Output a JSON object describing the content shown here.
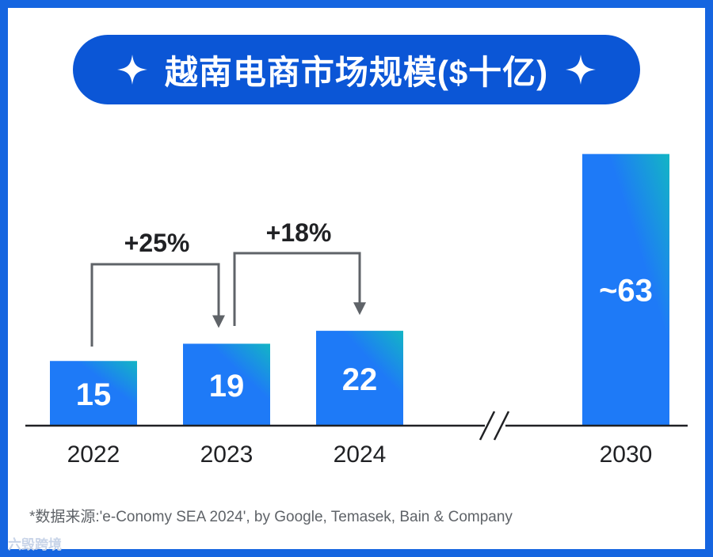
{
  "header": {
    "title": "越南电商市场规模($十亿)",
    "icon_left": "sparkle-icon",
    "icon_right": "sparkle-icon"
  },
  "chart_data": {
    "type": "bar",
    "title": "越南电商市场规模($十亿)",
    "categories": [
      "2022",
      "2023",
      "2024",
      "2030"
    ],
    "values": [
      15,
      19,
      22,
      63
    ],
    "value_labels": [
      "15",
      "19",
      "22",
      "~63"
    ],
    "axis_break_between": [
      "2024",
      "2030"
    ],
    "annotations": [
      {
        "from": "2022",
        "to": "2023",
        "label": "+25%"
      },
      {
        "from": "2023",
        "to": "2024",
        "label": "+18%"
      }
    ],
    "bar_gradient": [
      "#1e7af7",
      "#13b5c5"
    ],
    "ylim": [
      0,
      63
    ]
  },
  "footnote": "*数据来源:'e-Conomy SEA 2024', by Google, Temasek, Bain & Company",
  "watermark": "六毁跨境",
  "colors": {
    "frame": "#1565e0",
    "pill": "#0b56d6",
    "axis": "#202124",
    "arrow": "#5f6368"
  }
}
